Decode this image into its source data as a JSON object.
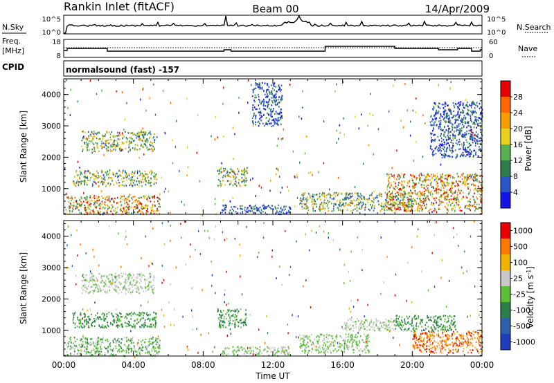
{
  "header": {
    "station": "Rankin Inlet (fitACF)",
    "beam": "Beam 00",
    "date": "14/Apr/2009"
  },
  "nsky_panel": {
    "left_label": "N.Sky",
    "right_label": "N.Search",
    "left_ticks": [
      "10^5",
      "10^0"
    ],
    "right_ticks": [
      "10^5",
      "10^0"
    ]
  },
  "freq_panel": {
    "left_label_1": "Freq.",
    "left_label_2": "[MHz]",
    "right_label": "Nave",
    "left_ticks": [
      "18",
      "8"
    ],
    "right_ticks": [
      "60",
      "0"
    ]
  },
  "cpid": {
    "label": "CPID",
    "program": "normalsound (fast) -157"
  },
  "chart_data": [
    {
      "type": "heatmap",
      "title": "",
      "quantity": "Power",
      "ylabel": "Slant Range [km]",
      "xlabel": "",
      "ylim": [
        180,
        4500
      ],
      "yticks": [
        "1000",
        "2000",
        "3000",
        "4000"
      ],
      "xticks": [],
      "colorbar": {
        "label": "Power [dB]",
        "ticks": [
          "4",
          "8",
          "12",
          "16",
          "20",
          "24",
          "28"
        ],
        "colors": [
          "#1414e6",
          "#2855c8",
          "#2c7f4a",
          "#59b04f",
          "#e6d21c",
          "#f5a000",
          "#ff6600",
          "#e60000"
        ]
      },
      "regions": [
        {
          "t0": 0.1,
          "t1": 5.5,
          "r0": 200,
          "r1": 800,
          "level": "high"
        },
        {
          "t0": 0.5,
          "t1": 5.3,
          "r0": 1100,
          "r1": 1600,
          "level": "mid"
        },
        {
          "t0": 1.0,
          "t1": 5.2,
          "r0": 2200,
          "r1": 2850,
          "level": "mid"
        },
        {
          "t0": 8.8,
          "t1": 10.5,
          "r0": 1100,
          "r1": 1700,
          "level": "mid"
        },
        {
          "t0": 9.0,
          "t1": 13.0,
          "r0": 200,
          "r1": 500,
          "level": "low"
        },
        {
          "t0": 13.5,
          "t1": 20.0,
          "r0": 300,
          "r1": 900,
          "level": "mid"
        },
        {
          "t0": 18.5,
          "t1": 24.0,
          "r0": 300,
          "r1": 1500,
          "level": "high"
        },
        {
          "t0": 10.8,
          "t1": 12.5,
          "r0": 3000,
          "r1": 4400,
          "level": "low"
        },
        {
          "t0": 21.0,
          "t1": 24.0,
          "r0": 2000,
          "r1": 3800,
          "level": "low"
        }
      ]
    },
    {
      "type": "heatmap",
      "title": "",
      "quantity": "Velocity",
      "ylabel": "Slant Range [km]",
      "xlabel": "Time UT",
      "ylim": [
        180,
        4500
      ],
      "yticks": [
        "1000",
        "2000",
        "3000",
        "4000"
      ],
      "xticks": [
        "00:00",
        "04:00",
        "08:00",
        "12:00",
        "16:00",
        "20:00",
        "00:00"
      ],
      "colorbar": {
        "label": "Velocity [m s",
        "label_sup": "-1",
        "label_end": "]",
        "ticks": [
          "1000",
          "500",
          "100",
          "25",
          "-25",
          "-100",
          "-500",
          "-1000"
        ],
        "colors": [
          "#1f3dbd",
          "#2c60a8",
          "#2b8049",
          "#5cbf3a",
          "#c8c8c8",
          "#f0b400",
          "#ff7800",
          "#e60000"
        ]
      },
      "regions": [
        {
          "t0": 0.1,
          "t1": 5.5,
          "r0": 200,
          "r1": 800,
          "level": "green"
        },
        {
          "t0": 0.5,
          "t1": 5.3,
          "r0": 1100,
          "r1": 1600,
          "level": "darkgreen"
        },
        {
          "t0": 1.0,
          "t1": 5.2,
          "r0": 2200,
          "r1": 2850,
          "level": "grey"
        },
        {
          "t0": 8.8,
          "t1": 10.5,
          "r0": 1100,
          "r1": 1700,
          "level": "darkgreen"
        },
        {
          "t0": 9.0,
          "t1": 13.0,
          "r0": 200,
          "r1": 500,
          "level": "lightgreen"
        },
        {
          "t0": 13.5,
          "t1": 17.5,
          "r0": 300,
          "r1": 900,
          "level": "lightgreen"
        },
        {
          "t0": 16.0,
          "t1": 19.0,
          "r0": 1000,
          "r1": 1400,
          "level": "grey"
        },
        {
          "t0": 20.0,
          "t1": 24.0,
          "r0": 300,
          "r1": 1000,
          "level": "orange"
        },
        {
          "t0": 19.0,
          "t1": 22.5,
          "r0": 1000,
          "r1": 1500,
          "level": "darkgreen"
        }
      ]
    }
  ]
}
